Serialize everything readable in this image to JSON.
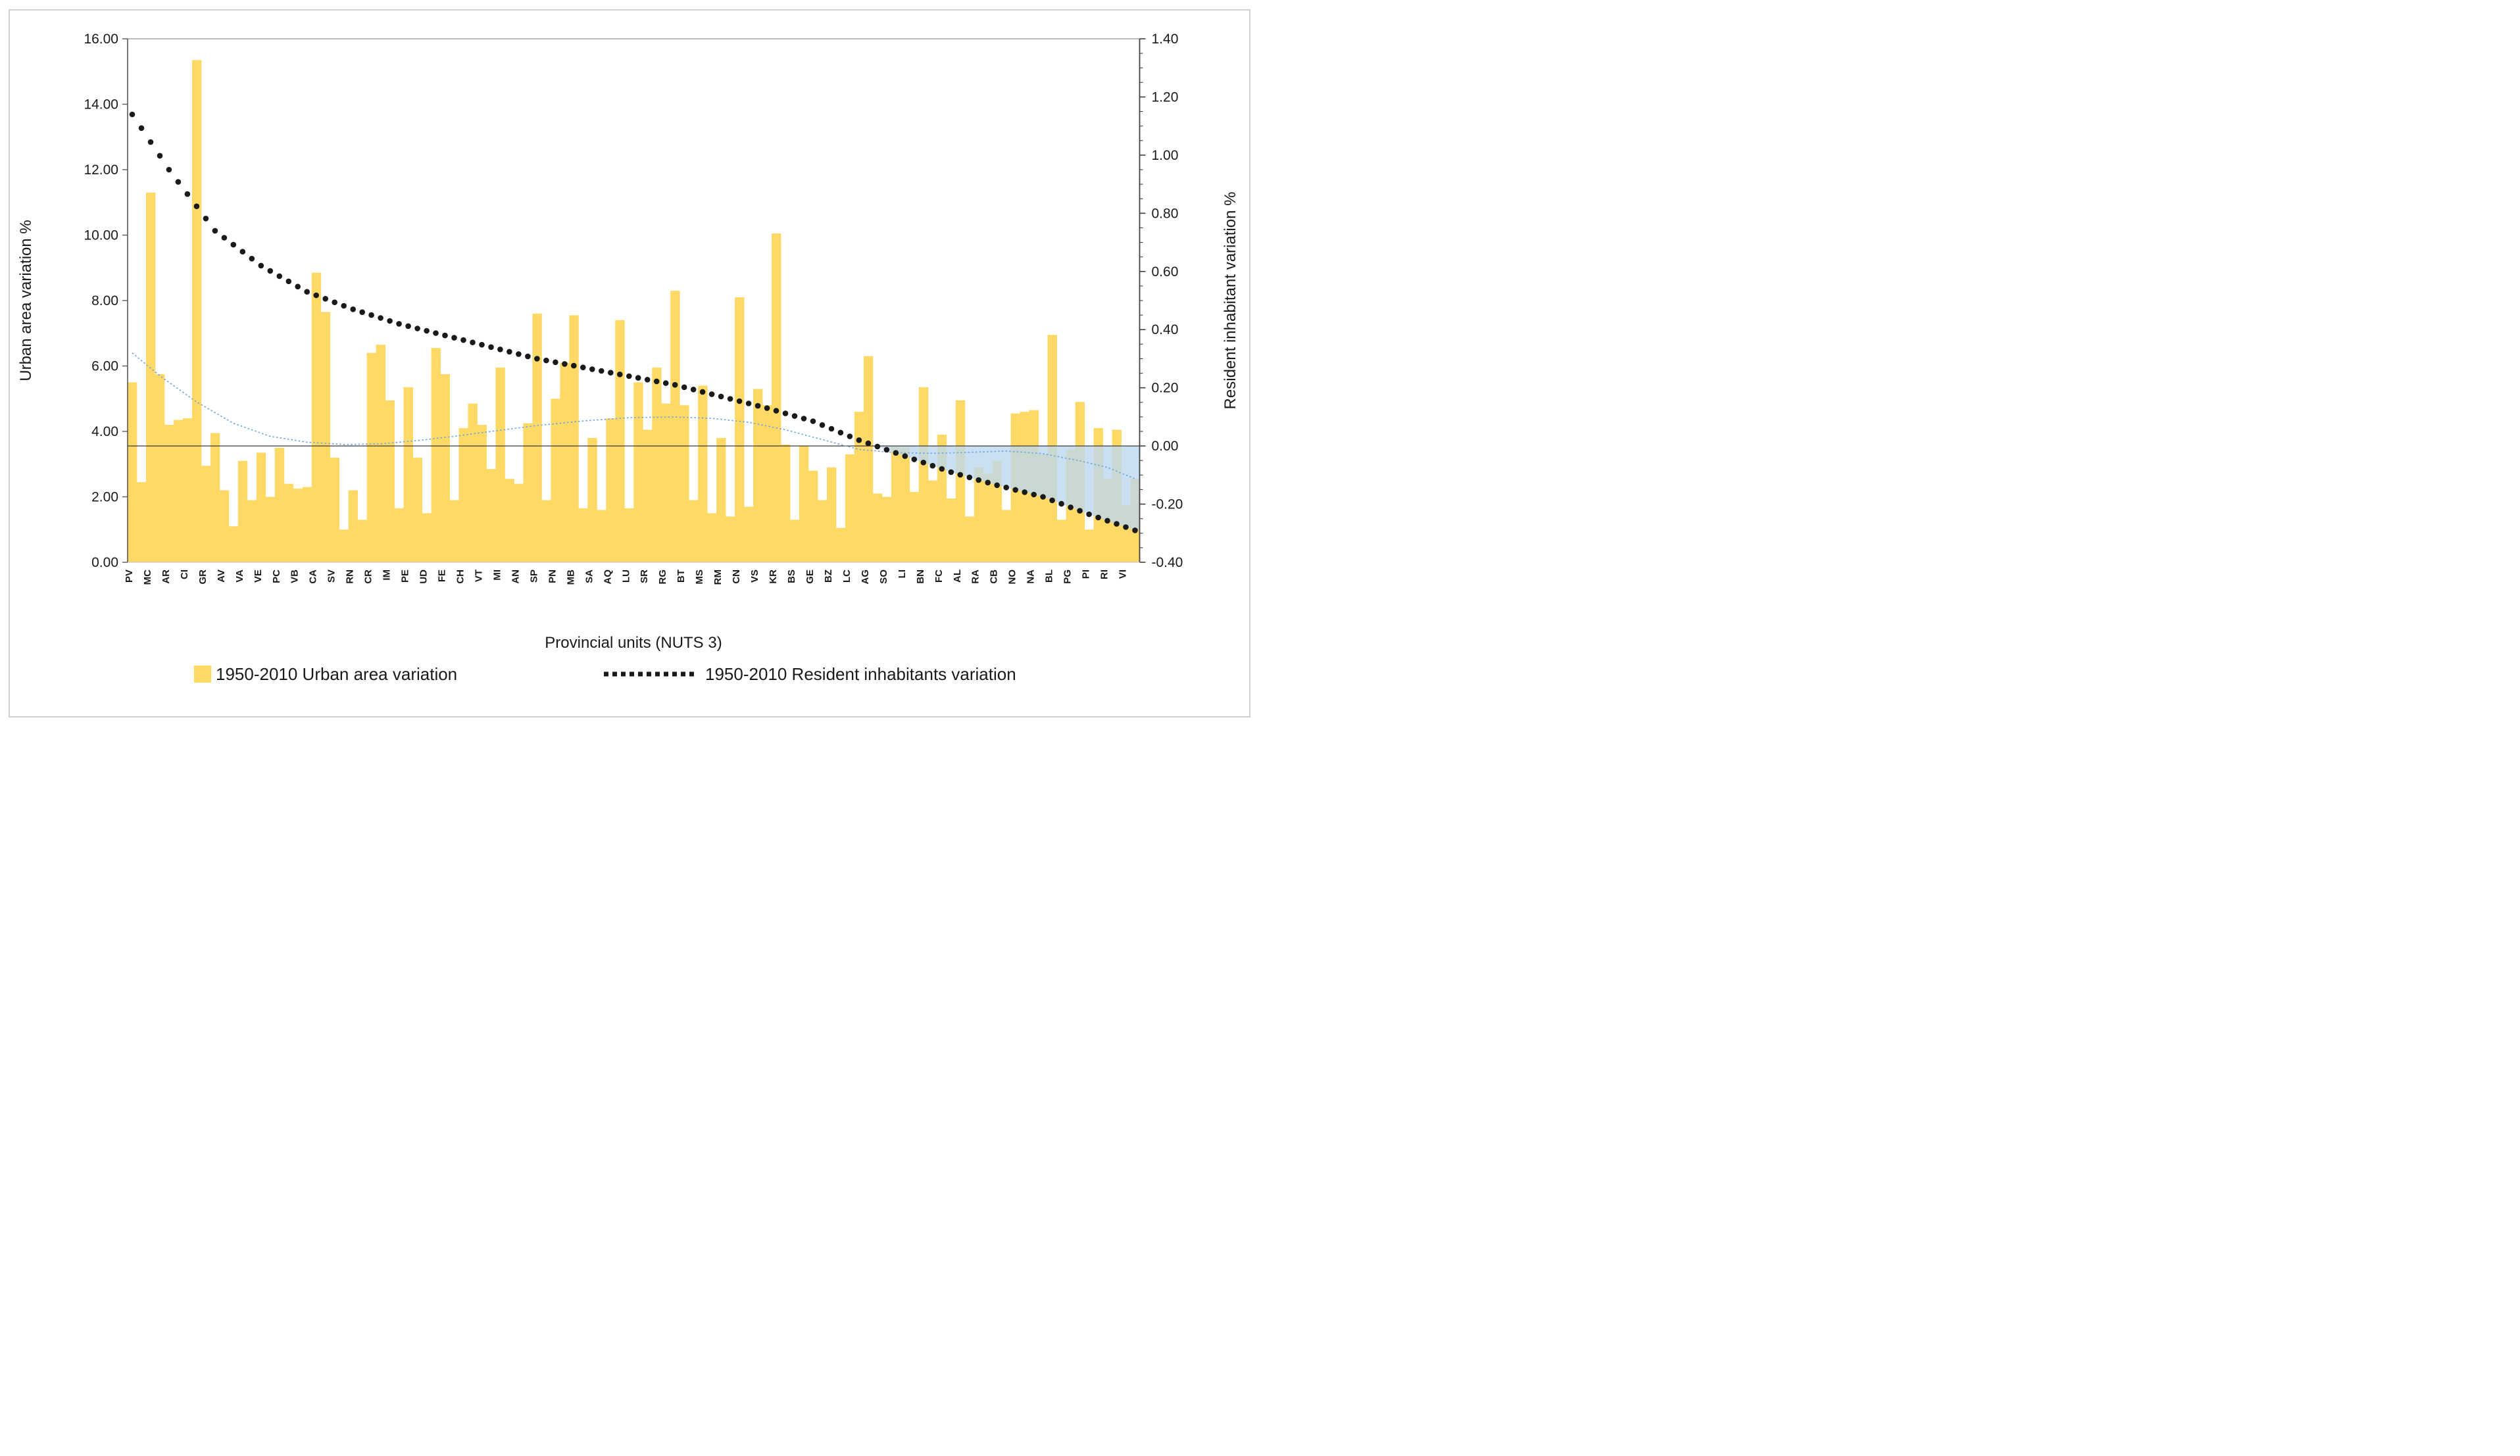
{
  "page": {
    "background": "#ffffff",
    "border_color": "#d0d0d0"
  },
  "chart_data": {
    "type": "bar",
    "title": "",
    "x_axis": {
      "title": "Provincial units (NUTS 3)"
    },
    "y_axis_left": {
      "title": "Urban area variation %",
      "min": 0,
      "max": 16,
      "step": 2,
      "tick_labels": [
        "0.00",
        "2.00",
        "4.00",
        "6.00",
        "8.00",
        "10.00",
        "12.00",
        "14.00",
        "16.00"
      ]
    },
    "y_axis_right": {
      "title": "Resident inhabitant variation %",
      "min": -0.4,
      "max": 1.4,
      "step": 0.2,
      "minor_step": 0.05,
      "tick_labels": [
        "1.40",
        "1.20",
        "1.00",
        "0.80",
        "0.60",
        "0.40",
        "0.20",
        "0.00",
        "-0.20",
        "-0.40"
      ]
    },
    "categories": [
      "PV",
      "MC",
      "AR",
      "CI",
      "GR",
      "AV",
      "VA",
      "VE",
      "PC",
      "VB",
      "CA",
      "SV",
      "RN",
      "CR",
      "IM",
      "PE",
      "UD",
      "FE",
      "CH",
      "VT",
      "MI",
      "AN",
      "SP",
      "PN",
      "MB",
      "SA",
      "AQ",
      "LU",
      "SR",
      "RG",
      "BT",
      "MS",
      "RM",
      "CN",
      "VS",
      "KR",
      "BS",
      "GE",
      "BZ",
      "LC",
      "AG",
      "SO",
      "LI",
      "BN",
      "FC",
      "AL",
      "RA",
      "CB",
      "NO",
      "NA",
      "BL",
      "PG",
      "PI",
      "RI",
      "VI"
    ],
    "bars_per_label": 2,
    "series": [
      {
        "name": "1950-2010 Urban area variation",
        "type": "bar",
        "axis": "left",
        "color": "#FFD966",
        "values": [
          5.5,
          2.45,
          11.3,
          5.75,
          4.2,
          4.35,
          4.4,
          15.35,
          2.95,
          3.95,
          2.2,
          1.1,
          3.1,
          1.9,
          3.35,
          2.0,
          3.5,
          2.4,
          2.25,
          2.3,
          8.85,
          7.65,
          3.2,
          1.0,
          2.2,
          1.3,
          6.4,
          6.65,
          4.95,
          1.65,
          5.35,
          3.2,
          1.5,
          6.55,
          5.75,
          1.9,
          4.1,
          4.85,
          4.2,
          2.85,
          5.95,
          2.55,
          2.4,
          4.25,
          7.6,
          1.9,
          5.0,
          6.1,
          7.55,
          1.65,
          3.8,
          1.6,
          4.4,
          7.4,
          1.65,
          5.5,
          4.05,
          5.95,
          4.85,
          8.3,
          4.8,
          1.9,
          5.4,
          1.5,
          3.8,
          1.4,
          8.1,
          1.7,
          5.3,
          4.8,
          10.05,
          3.6,
          1.3,
          3.55,
          2.8,
          1.9,
          2.9,
          1.05,
          3.3,
          4.6,
          6.3,
          2.1,
          2.0,
          3.55,
          3.5,
          2.15,
          5.35,
          2.5,
          3.9,
          1.95,
          4.95,
          1.4,
          2.9,
          2.7,
          3.1,
          1.6,
          4.55,
          4.6,
          4.65,
          3.3,
          6.95,
          1.3,
          3.45,
          4.9,
          1.0,
          4.1,
          2.55,
          4.05,
          1.75,
          2.55
        ]
      },
      {
        "name": "1950-2010 Resident inhabitants variation",
        "type": "dotted_line",
        "axis": "right",
        "color": "#1a1a1a",
        "negative_area_color": "#BDD7EE",
        "values": [
          1.14,
          1.093,
          1.045,
          0.998,
          0.95,
          0.908,
          0.866,
          0.824,
          0.782,
          0.74,
          0.716,
          0.692,
          0.668,
          0.644,
          0.62,
          0.602,
          0.584,
          0.566,
          0.548,
          0.53,
          0.518,
          0.506,
          0.494,
          0.482,
          0.47,
          0.46,
          0.45,
          0.44,
          0.43,
          0.42,
          0.412,
          0.404,
          0.396,
          0.388,
          0.38,
          0.372,
          0.364,
          0.356,
          0.348,
          0.34,
          0.332,
          0.324,
          0.316,
          0.308,
          0.3,
          0.294,
          0.288,
          0.282,
          0.276,
          0.27,
          0.264,
          0.258,
          0.252,
          0.246,
          0.24,
          0.234,
          0.228,
          0.222,
          0.216,
          0.21,
          0.202,
          0.194,
          0.186,
          0.178,
          0.17,
          0.162,
          0.154,
          0.146,
          0.138,
          0.13,
          0.121,
          0.112,
          0.103,
          0.094,
          0.085,
          0.072,
          0.059,
          0.046,
          0.033,
          0.02,
          0.009,
          -0.002,
          -0.013,
          -0.024,
          -0.035,
          -0.046,
          -0.057,
          -0.068,
          -0.079,
          -0.09,
          -0.099,
          -0.108,
          -0.117,
          -0.126,
          -0.135,
          -0.143,
          -0.151,
          -0.159,
          -0.167,
          -0.175,
          -0.187,
          -0.199,
          -0.211,
          -0.223,
          -0.235,
          -0.246,
          -0.257,
          -0.268,
          -0.279,
          -0.29
        ]
      },
      {
        "name": "urban-area-polynomial-trendline",
        "type": "dotted_curve",
        "axis": "left",
        "color": "#6FA8DC",
        "in_legend": false,
        "anchors": [
          [
            0,
            6.4
          ],
          [
            3,
            5.7
          ],
          [
            7,
            4.9
          ],
          [
            11,
            4.25
          ],
          [
            15,
            3.85
          ],
          [
            19,
            3.67
          ],
          [
            23,
            3.6
          ],
          [
            27,
            3.62
          ],
          [
            31,
            3.72
          ],
          [
            35,
            3.85
          ],
          [
            39,
            4.0
          ],
          [
            44,
            4.18
          ],
          [
            49,
            4.32
          ],
          [
            54,
            4.42
          ],
          [
            59,
            4.44
          ],
          [
            63,
            4.4
          ],
          [
            67,
            4.28
          ],
          [
            71,
            4.05
          ],
          [
            75,
            3.75
          ],
          [
            79,
            3.45
          ],
          [
            83,
            3.35
          ],
          [
            87,
            3.33
          ],
          [
            91,
            3.36
          ],
          [
            95,
            3.4
          ],
          [
            99,
            3.32
          ],
          [
            103,
            3.1
          ],
          [
            106,
            2.9
          ],
          [
            109,
            2.55
          ]
        ]
      }
    ],
    "legend": {
      "entries": [
        {
          "label": "1950-2010 Urban area variation",
          "swatch": "bar-yellow"
        },
        {
          "label": "1950-2010 Resident inhabitants variation",
          "swatch": "dotted-black"
        }
      ]
    }
  }
}
